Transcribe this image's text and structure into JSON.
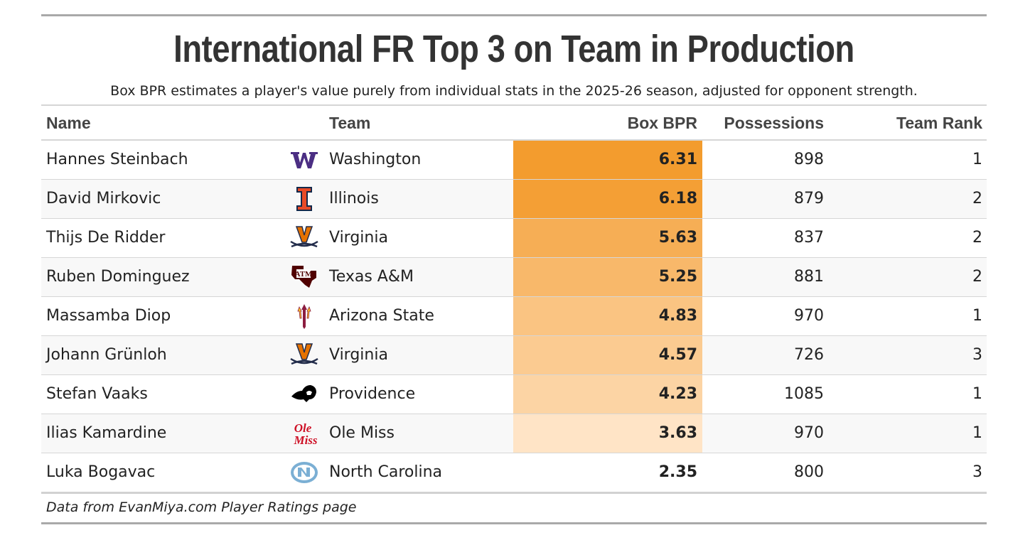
{
  "chart_data": {
    "type": "table",
    "title": "International FR Top 3 on Team in Production",
    "subtitle": "Box BPR estimates a player's value purely from individual stats in the 2025-26 season, adjusted for opponent strength.",
    "columns": [
      "Name",
      "Team",
      "Box BPR",
      "Possessions",
      "Team Rank"
    ],
    "rows": [
      {
        "name": "Hannes Steinbach",
        "team": "Washington",
        "logo": "washington-logo-icon",
        "bpr": "6.31",
        "bpr_value": 6.31,
        "possessions": "898",
        "rank": "1"
      },
      {
        "name": "David Mirkovic",
        "team": "Illinois",
        "logo": "illinois-logo-icon",
        "bpr": "6.18",
        "bpr_value": 6.18,
        "possessions": "879",
        "rank": "2"
      },
      {
        "name": "Thijs De Ridder",
        "team": "Virginia",
        "logo": "virginia-logo-icon",
        "bpr": "5.63",
        "bpr_value": 5.63,
        "possessions": "837",
        "rank": "2"
      },
      {
        "name": "Ruben Dominguez",
        "team": "Texas A&M",
        "logo": "texas-am-logo-icon",
        "bpr": "5.25",
        "bpr_value": 5.25,
        "possessions": "881",
        "rank": "2"
      },
      {
        "name": "Massamba Diop",
        "team": "Arizona State",
        "logo": "arizona-state-logo-icon",
        "bpr": "4.83",
        "bpr_value": 4.83,
        "possessions": "970",
        "rank": "1"
      },
      {
        "name": "Johann Grünloh",
        "team": "Virginia",
        "logo": "virginia-logo-icon",
        "bpr": "4.57",
        "bpr_value": 4.57,
        "possessions": "726",
        "rank": "3"
      },
      {
        "name": "Stefan Vaaks",
        "team": "Providence",
        "logo": "providence-logo-icon",
        "bpr": "4.23",
        "bpr_value": 4.23,
        "possessions": "1085",
        "rank": "1"
      },
      {
        "name": "Ilias Kamardine",
        "team": "Ole Miss",
        "logo": "ole-miss-logo-icon",
        "bpr": "3.63",
        "bpr_value": 3.63,
        "possessions": "970",
        "rank": "1"
      },
      {
        "name": "Luka Bogavac",
        "team": "North Carolina",
        "logo": "north-carolina-logo-icon",
        "bpr": "2.35",
        "bpr_value": 2.35,
        "possessions": "800",
        "rank": "3"
      }
    ],
    "color_scale": {
      "max_color": "#f39c2e",
      "min_color": "#ffe4c6",
      "low_threshold": 3.0
    },
    "footer": "Data from EvanMiya.com Player Ratings page"
  },
  "team_colors": {
    "washington": "#4b2e83",
    "illinois": "#e84a27",
    "illinois_dark": "#13294b",
    "virginia": "#232d4b",
    "virginia_orange": "#e57200",
    "texas_am": "#500000",
    "arizona_state": "#8c1d40",
    "arizona_state_gold": "#ffc627",
    "providence": "#000000",
    "ole_miss": "#ce1126",
    "north_carolina": "#7bafd4"
  }
}
